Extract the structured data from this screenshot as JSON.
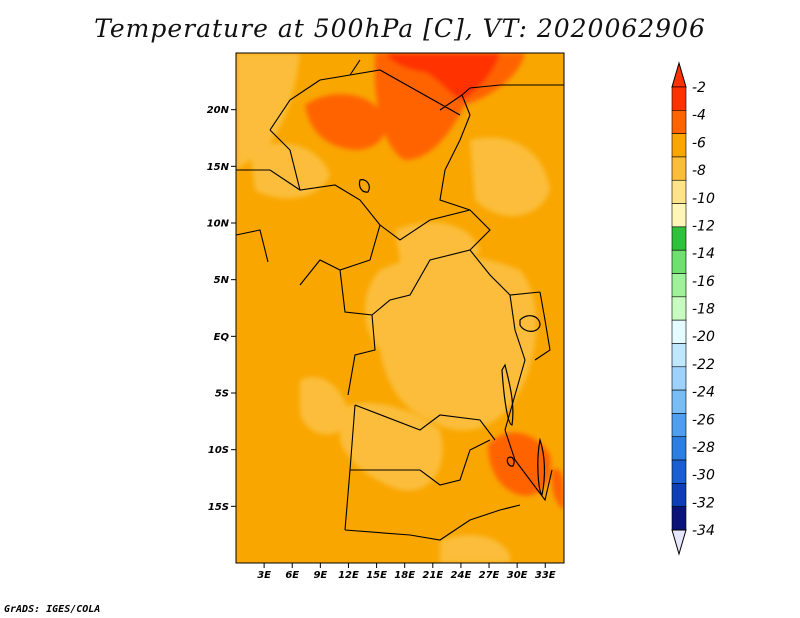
{
  "title": "Temperature at 500hPa [C], VT: 2020062906",
  "credit": "GrADS: IGES/COLA",
  "map": {
    "lat_range": [
      -20,
      25
    ],
    "lon_range": [
      0,
      35
    ],
    "lat_ticks": [
      {
        "value": 20,
        "label": "20N"
      },
      {
        "value": 15,
        "label": "15N"
      },
      {
        "value": 10,
        "label": "10N"
      },
      {
        "value": 5,
        "label": "5N"
      },
      {
        "value": 0,
        "label": "EQ"
      },
      {
        "value": -5,
        "label": "5S"
      },
      {
        "value": -10,
        "label": "10S"
      },
      {
        "value": -15,
        "label": "15S"
      }
    ],
    "lon_ticks": [
      {
        "value": 3,
        "label": "3E"
      },
      {
        "value": 6,
        "label": "6E"
      },
      {
        "value": 9,
        "label": "9E"
      },
      {
        "value": 12,
        "label": "12E"
      },
      {
        "value": 15,
        "label": "15E"
      },
      {
        "value": 18,
        "label": "18E"
      },
      {
        "value": 21,
        "label": "21E"
      },
      {
        "value": 24,
        "label": "24E"
      },
      {
        "value": 27,
        "label": "27E"
      },
      {
        "value": 30,
        "label": "30E"
      },
      {
        "value": 33,
        "label": "33E"
      }
    ],
    "background_color": "#f9a600"
  },
  "colorbar": {
    "bands": [
      {
        "color": "#ff3200"
      },
      {
        "color": "#ff6400"
      },
      {
        "color": "#f9a600"
      },
      {
        "color": "#fbbd3a"
      },
      {
        "color": "#fde38a"
      },
      {
        "color": "#fff6b8"
      },
      {
        "color": "#2fc13a"
      },
      {
        "color": "#6ee06e"
      },
      {
        "color": "#9ef29a"
      },
      {
        "color": "#c8fbc2"
      },
      {
        "color": "#e4fbff"
      },
      {
        "color": "#bfe8ff"
      },
      {
        "color": "#9fd2fb"
      },
      {
        "color": "#78bdf5"
      },
      {
        "color": "#4e9ff0"
      },
      {
        "color": "#2c7fe0"
      },
      {
        "color": "#1a5fd0"
      },
      {
        "color": "#0c3fb4"
      },
      {
        "color": "#0a1478"
      }
    ],
    "top_triangle_color": "#ff3200",
    "bottom_triangle_color": "#e6e6ff",
    "labels": [
      "-2",
      "-4",
      "-6",
      "-8",
      "-10",
      "-12",
      "-14",
      "-16",
      "-18",
      "-20",
      "-22",
      "-24",
      "-26",
      "-28",
      "-30",
      "-32",
      "-34"
    ]
  },
  "chart_data": {
    "type": "heatmap",
    "title": "Temperature at 500hPa [C], VT: 2020062906",
    "variable_unit": "C",
    "x_range": [
      0,
      35
    ],
    "y_range": [
      -20,
      25
    ],
    "levels": [
      -2,
      -4,
      -6,
      -8,
      -10,
      -12,
      -14,
      -16,
      -18,
      -20,
      -22,
      -24,
      -26,
      -28,
      -30,
      -32,
      -34
    ],
    "regions": [
      {
        "level_band": "-6 to -8",
        "lon": 0.5,
        "lat": 22,
        "rx": 1,
        "ry": 3
      },
      {
        "level_band": "-2 to -4",
        "lon": 21,
        "lat": 22.5,
        "rx": 4,
        "ry": 2.5
      },
      {
        "level_band": "-4 to -6",
        "lon": 16,
        "lat": 19,
        "rx": 6,
        "ry": 4
      },
      {
        "level_band": "-6 to -8",
        "lon": 20,
        "lat": 0,
        "rx": 9,
        "ry": 6
      },
      {
        "level_band": "-4 to -6",
        "lon": 29,
        "lat": -11,
        "rx": 3.5,
        "ry": 2.5
      },
      {
        "level_band": "-6 to -8",
        "lon": 14,
        "lat": -9,
        "rx": 5,
        "ry": 3
      }
    ]
  }
}
